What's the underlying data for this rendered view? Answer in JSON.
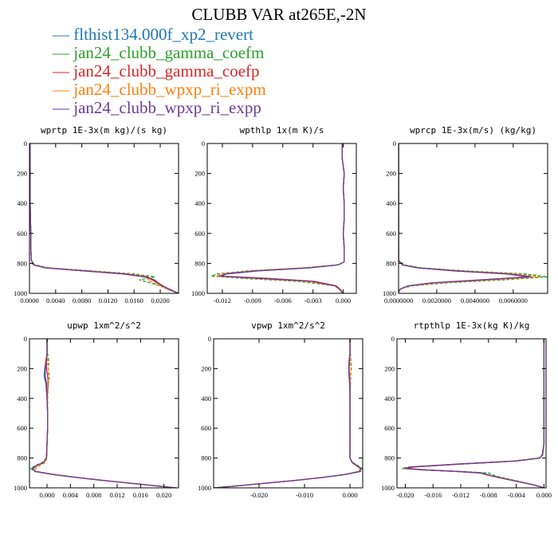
{
  "figure": {
    "title": "CLUBB VAR at265E,-2N",
    "legend": [
      {
        "label": "flthist134.000f_xp2_revert",
        "color": "#1f77b4",
        "dash": "solid"
      },
      {
        "label": "jan24_clubb_gamma_coefm",
        "color": "#2ca02c",
        "dash": "dashed"
      },
      {
        "label": "jan24_clubb_gamma_coefp",
        "color": "#d62728",
        "dash": "solid"
      },
      {
        "label": "jan24_clubb_wpxp_ri_expm",
        "color": "#ff7f0e",
        "dash": "dashed"
      },
      {
        "label": "jan24_clubb_wpxp_ri_expp",
        "color": "#6a3d9a",
        "dash": "solid"
      }
    ]
  },
  "chart_data": [
    {
      "type": "line",
      "title": "wprtp  1E-3x(m kg)/(s kg)",
      "xlim": [
        0,
        0.0228
      ],
      "ylim": [
        1000,
        0
      ],
      "xticks": [
        "0.0000",
        "0.0040",
        "0.0080",
        "0.0120",
        "0.0160",
        "0.0200"
      ],
      "yticks": [
        "0",
        "200",
        "400",
        "600",
        "800",
        "1000"
      ],
      "y": [
        0,
        200,
        400,
        600,
        700,
        780,
        810,
        830,
        850,
        870,
        890,
        910,
        930,
        950,
        970,
        990,
        1000
      ],
      "series": [
        {
          "values": [
            0.0001,
            0.0001,
            0.0001,
            0.0002,
            0.0002,
            0.0003,
            0.0006,
            0.0025,
            0.0085,
            0.0145,
            0.018,
            0.019,
            0.0196,
            0.0203,
            0.0212,
            0.0222,
            0.0228
          ]
        },
        {
          "values": [
            0.0001,
            0.0001,
            0.0001,
            0.0002,
            0.0002,
            0.0003,
            0.0008,
            0.003,
            0.0095,
            0.016,
            0.0192,
            0.0168,
            0.0185,
            0.02,
            0.021,
            0.0221,
            0.0227
          ]
        },
        {
          "values": [
            0.0001,
            0.0001,
            0.0001,
            0.0002,
            0.0002,
            0.0003,
            0.0006,
            0.0024,
            0.0082,
            0.0142,
            0.0176,
            0.0188,
            0.0195,
            0.0202,
            0.0211,
            0.0222,
            0.0228
          ]
        },
        {
          "values": [
            0.0001,
            0.0001,
            0.0001,
            0.0002,
            0.0002,
            0.0003,
            0.0007,
            0.0028,
            0.009,
            0.0152,
            0.0184,
            0.0181,
            0.019,
            0.0201,
            0.021,
            0.0221,
            0.0227
          ]
        },
        {
          "values": [
            0.0001,
            0.0001,
            0.0001,
            0.0002,
            0.0002,
            0.0003,
            0.0006,
            0.0025,
            0.0084,
            0.0144,
            0.0179,
            0.0191,
            0.0197,
            0.0204,
            0.0213,
            0.0223,
            0.0228
          ]
        }
      ]
    },
    {
      "type": "line",
      "title": "wpthlp  1x(m K)/s",
      "xlim": [
        -0.0135,
        0.0013
      ],
      "ylim": [
        1000,
        0
      ],
      "xticks": [
        "-0.012",
        "-0.009",
        "-0.006",
        "-0.003",
        "0.000"
      ],
      "yticks": [
        "0",
        "200",
        "400",
        "600",
        "800",
        "1000"
      ],
      "y": [
        0,
        100,
        200,
        300,
        400,
        500,
        600,
        700,
        790,
        810,
        830,
        850,
        870,
        885,
        900,
        920,
        950,
        980,
        1000
      ],
      "series": [
        {
          "values": [
            -0.0001,
            -0.0001,
            0.0001,
            0.0,
            0.0001,
            0.0001,
            0.0,
            0.0001,
            0.0001,
            -0.0005,
            -0.0035,
            -0.0085,
            -0.0115,
            -0.0122,
            -0.008,
            -0.003,
            -0.0008,
            -0.0002,
            -0.0001
          ]
        },
        {
          "values": [
            -0.0001,
            -0.0001,
            0.0001,
            0.0,
            0.0001,
            0.0001,
            0.0,
            0.0001,
            0.0001,
            -0.0005,
            -0.004,
            -0.0095,
            -0.0125,
            -0.0131,
            -0.01,
            -0.0045,
            -0.0008,
            -0.0003,
            -0.0001
          ]
        },
        {
          "values": [
            -0.0001,
            -0.0001,
            0.0001,
            0.0,
            0.0001,
            0.0001,
            0.0,
            0.0001,
            0.0001,
            -0.0005,
            -0.0036,
            -0.0088,
            -0.0117,
            -0.012,
            -0.0075,
            -0.0028,
            -0.0007,
            -0.0002,
            -0.0001
          ]
        },
        {
          "values": [
            -0.0001,
            -0.0001,
            0.0001,
            0.0,
            0.0001,
            0.0001,
            0.0,
            0.0001,
            0.0001,
            -0.0005,
            -0.0038,
            -0.009,
            -0.012,
            -0.0126,
            -0.009,
            -0.0038,
            -0.0008,
            -0.0003,
            -0.0001
          ]
        },
        {
          "values": [
            -0.0001,
            -0.0001,
            0.0001,
            0.0,
            0.0001,
            0.0001,
            0.0,
            0.0001,
            0.0001,
            -0.0005,
            -0.0034,
            -0.0086,
            -0.0116,
            -0.0123,
            -0.0082,
            -0.0031,
            -0.0008,
            -0.0002,
            -0.0001
          ]
        }
      ]
    },
    {
      "type": "line",
      "title": "wprcp  1E-3x(m/s) (kg/kg)",
      "xlim": [
        0,
        0.0078
      ],
      "ylim": [
        1000,
        0
      ],
      "xticks": [
        "0.0000000",
        "0.0020000",
        "0.0040000",
        "0.0060000"
      ],
      "yticks": [
        "0",
        "200",
        "400",
        "600",
        "800",
        "1000"
      ],
      "y": [
        0,
        300,
        600,
        700,
        780,
        810,
        830,
        850,
        870,
        890,
        910,
        930,
        950,
        970,
        990,
        1000
      ],
      "series": [
        {
          "values": [
            0,
            0,
            0,
            0,
            0.0,
            0.0002,
            0.001,
            0.003,
            0.0058,
            0.007,
            0.0045,
            0.0018,
            0.0005,
            0.0001,
            0,
            0
          ]
        },
        {
          "values": [
            0,
            0,
            0,
            0,
            0.0,
            0.0003,
            0.0012,
            0.0035,
            0.0066,
            0.0078,
            0.0055,
            0.0025,
            0.0007,
            0.0001,
            0,
            0
          ]
        },
        {
          "values": [
            0,
            0,
            0,
            0,
            0.0,
            0.0002,
            0.001,
            0.0029,
            0.0056,
            0.0068,
            0.0043,
            0.0017,
            0.0005,
            0.0001,
            0,
            0
          ]
        },
        {
          "values": [
            0,
            0,
            0,
            0,
            0.0,
            0.0002,
            0.0011,
            0.0032,
            0.0062,
            0.0074,
            0.005,
            0.0021,
            0.0006,
            0.0001,
            0,
            0
          ]
        },
        {
          "values": [
            0,
            0,
            0,
            0,
            0.0,
            0.0002,
            0.001,
            0.003,
            0.0057,
            0.0069,
            0.0044,
            0.0018,
            0.0005,
            0.0001,
            0,
            0
          ]
        }
      ]
    },
    {
      "type": "line",
      "title": "upwp  1xm^2/s^2",
      "xlim": [
        -0.003,
        0.0225
      ],
      "ylim": [
        1000,
        0
      ],
      "xticks": [
        "0.000",
        "0.004",
        "0.008",
        "0.012",
        "0.016",
        "0.020"
      ],
      "yticks": [
        "0",
        "200",
        "400",
        "600",
        "800",
        "1000"
      ],
      "y": [
        0,
        100,
        150,
        200,
        250,
        300,
        400,
        500,
        600,
        700,
        800,
        830,
        850,
        870,
        890,
        910,
        930,
        950,
        970,
        990,
        1000
      ],
      "series": [
        {
          "values": [
            0.0,
            0.0,
            -0.0002,
            -0.0004,
            -0.0005,
            -0.0002,
            0.0,
            0.0001,
            0.0001,
            0.0,
            -0.0001,
            -0.0006,
            -0.0018,
            -0.0025,
            -0.002,
            0.001,
            0.005,
            0.0095,
            0.0145,
            0.0195,
            0.022
          ]
        },
        {
          "values": [
            0.0,
            0.0001,
            0.0003,
            0.0002,
            0.0004,
            0.0002,
            0.0001,
            0.0001,
            0.0001,
            0.0,
            -0.0001,
            -0.0008,
            -0.002,
            -0.0028,
            -0.0022,
            0.001,
            0.005,
            0.0095,
            0.0145,
            0.0195,
            0.022
          ]
        },
        {
          "values": [
            0.0,
            0.0,
            -0.0001,
            -0.0001,
            0.0001,
            0.0002,
            0.0,
            0.0001,
            0.0001,
            0.0,
            -0.0001,
            -0.0006,
            -0.0017,
            -0.0024,
            -0.002,
            0.001,
            0.005,
            0.0095,
            0.0145,
            0.0195,
            0.022
          ]
        },
        {
          "values": [
            0.0,
            0.0,
            0.0001,
            0.0002,
            0.0003,
            0.0001,
            0.0001,
            0.0001,
            0.0001,
            0.0,
            0.0,
            -0.0003,
            -0.0012,
            -0.002,
            -0.0017,
            0.0012,
            0.0052,
            0.0097,
            0.0147,
            0.0196,
            0.022
          ]
        },
        {
          "values": [
            0.0,
            0.0,
            -0.0002,
            -0.0003,
            -0.0003,
            -0.0001,
            0.0,
            0.0001,
            0.0001,
            0.0,
            -0.0001,
            -0.0006,
            -0.0018,
            -0.0025,
            -0.002,
            0.001,
            0.005,
            0.0095,
            0.0145,
            0.0195,
            0.022
          ]
        }
      ]
    },
    {
      "type": "line",
      "title": "vpwp  1xm^2/s^2",
      "xlim": [
        -0.03,
        0.0028
      ],
      "ylim": [
        1000,
        0
      ],
      "xticks": [
        "-0.020",
        "-0.010",
        "0.000"
      ],
      "yticks": [
        "0",
        "200",
        "400",
        "600",
        "800",
        "1000"
      ],
      "y": [
        0,
        100,
        150,
        200,
        250,
        300,
        400,
        500,
        600,
        700,
        800,
        830,
        850,
        870,
        890,
        910,
        930,
        950,
        970,
        990,
        1000
      ],
      "series": [
        {
          "values": [
            0.0,
            0.0,
            -0.0002,
            -0.0003,
            -0.0002,
            -0.0001,
            0.0,
            0.0,
            0.0,
            0.0,
            0.0,
            0.0005,
            0.0015,
            0.0024,
            0.0022,
            -0.001,
            -0.006,
            -0.012,
            -0.019,
            -0.026,
            -0.03
          ]
        },
        {
          "values": [
            0.0,
            0.0001,
            0.0002,
            0.0003,
            0.0001,
            0.0001,
            0.0,
            0.0,
            0.0,
            0.0,
            0.0,
            0.0006,
            0.0017,
            0.0027,
            0.0024,
            -0.0008,
            -0.0058,
            -0.0118,
            -0.0188,
            -0.0258,
            -0.03
          ]
        },
        {
          "values": [
            0.0,
            0.0,
            -0.0001,
            -0.0002,
            -0.0001,
            0.0,
            0.0,
            0.0,
            0.0,
            0.0,
            0.0,
            0.0005,
            0.0014,
            0.0023,
            0.0021,
            -0.001,
            -0.006,
            -0.012,
            -0.019,
            -0.026,
            -0.03
          ]
        },
        {
          "values": [
            0.0,
            0.0,
            0.0001,
            0.0002,
            0.0002,
            0.0001,
            0.0,
            0.0,
            0.0,
            0.0,
            0.0,
            0.0004,
            0.0013,
            0.0022,
            0.002,
            -0.0011,
            -0.0061,
            -0.0121,
            -0.0191,
            -0.026,
            -0.03
          ]
        },
        {
          "values": [
            0.0,
            0.0,
            -0.0002,
            -0.0002,
            -0.0002,
            0.0,
            0.0,
            0.0,
            0.0,
            0.0,
            0.0,
            0.0005,
            0.0015,
            0.0024,
            0.0022,
            -0.001,
            -0.006,
            -0.012,
            -0.019,
            -0.026,
            -0.03
          ]
        }
      ]
    },
    {
      "type": "line",
      "title": "rtpthlp  1E-3x(kg K)/kg",
      "xlim": [
        -0.0212,
        0.0003
      ],
      "ylim": [
        1000,
        0
      ],
      "xticks": [
        "-0.020",
        "-0.016",
        "-0.012",
        "-0.008",
        "-0.004",
        "0.000"
      ],
      "yticks": [
        "0",
        "200",
        "400",
        "600",
        "800",
        "1000"
      ],
      "y": [
        0,
        200,
        400,
        600,
        700,
        780,
        800,
        820,
        840,
        860,
        870,
        880,
        890,
        900,
        920,
        940,
        960,
        980,
        1000
      ],
      "series": [
        {
          "values": [
            0.0,
            0.0,
            0.0,
            0.0,
            0.0,
            -0.0002,
            -0.0006,
            -0.004,
            -0.012,
            -0.019,
            -0.02,
            -0.017,
            -0.0125,
            -0.009,
            -0.0075,
            -0.0055,
            -0.0035,
            -0.0015,
            0.0
          ]
        },
        {
          "values": [
            0.0,
            0.0,
            0.0,
            0.0,
            0.0,
            -0.0003,
            -0.0008,
            -0.0045,
            -0.0125,
            -0.0195,
            -0.0205,
            -0.0175,
            -0.012,
            -0.008,
            -0.007,
            -0.0052,
            -0.0033,
            -0.0014,
            0.0
          ]
        },
        {
          "values": [
            0.0,
            0.0,
            0.0,
            0.0,
            0.0,
            -0.0002,
            -0.0006,
            -0.004,
            -0.0118,
            -0.0188,
            -0.0198,
            -0.0168,
            -0.0124,
            -0.0092,
            -0.0076,
            -0.0056,
            -0.0036,
            -0.0015,
            0.0
          ]
        },
        {
          "values": [
            0.0,
            0.0,
            0.0,
            0.0,
            0.0,
            -0.0002,
            -0.0007,
            -0.0043,
            -0.0122,
            -0.0192,
            -0.0202,
            -0.0172,
            -0.0126,
            -0.0094,
            -0.0078,
            -0.0057,
            -0.0036,
            -0.0015,
            0.0
          ]
        },
        {
          "values": [
            0.0,
            0.0,
            0.0,
            0.0,
            0.0,
            -0.0002,
            -0.0006,
            -0.0041,
            -0.0121,
            -0.0191,
            -0.0201,
            -0.0171,
            -0.0125,
            -0.0091,
            -0.0075,
            -0.0055,
            -0.0035,
            -0.0015,
            0.0
          ]
        }
      ]
    }
  ]
}
